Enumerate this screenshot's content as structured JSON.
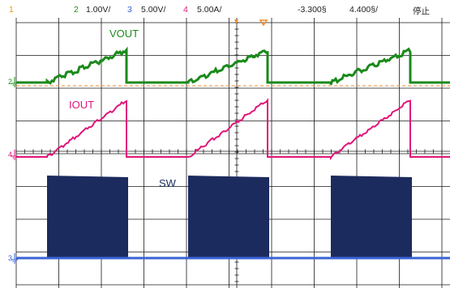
{
  "status_bar": {
    "channel1": {
      "number": "1"
    },
    "channel2": {
      "number": "2",
      "scale": "1.00V/"
    },
    "channel3": {
      "number": "3",
      "scale": "5.00V/"
    },
    "channel4": {
      "number": "4",
      "scale": "5.00A/"
    },
    "time_offset": "-3.300§",
    "time_scale": "4.400§/",
    "run_state": "停止"
  },
  "traces": {
    "vout_label": "VOUT",
    "iout_label": "IOUT",
    "sw_label": "SW"
  },
  "ground_markers": {
    "ch2": "2",
    "ch4": "4",
    "ch3": "3"
  },
  "colors": {
    "ch1": "#e0a000",
    "vout": "#1a8a1a",
    "iout": "#e0157a",
    "sw_fill": "#1c2b5e",
    "sw_baseline": "#3a63d6",
    "trigger": "#f08a2a",
    "grid": "#1a1a1a"
  },
  "chart_data": {
    "type": "line",
    "cycles": 3,
    "series": [
      {
        "name": "VOUT",
        "shape": "sawtooth",
        "period_div": 3.4,
        "ramp_div": 2.3
      },
      {
        "name": "IOUT",
        "shape": "sawtooth",
        "period_div": 3.4,
        "ramp_div": 2.3
      },
      {
        "name": "SW",
        "shape": "pulse",
        "period_div": 3.4,
        "width_div": 2.0
      }
    ]
  }
}
